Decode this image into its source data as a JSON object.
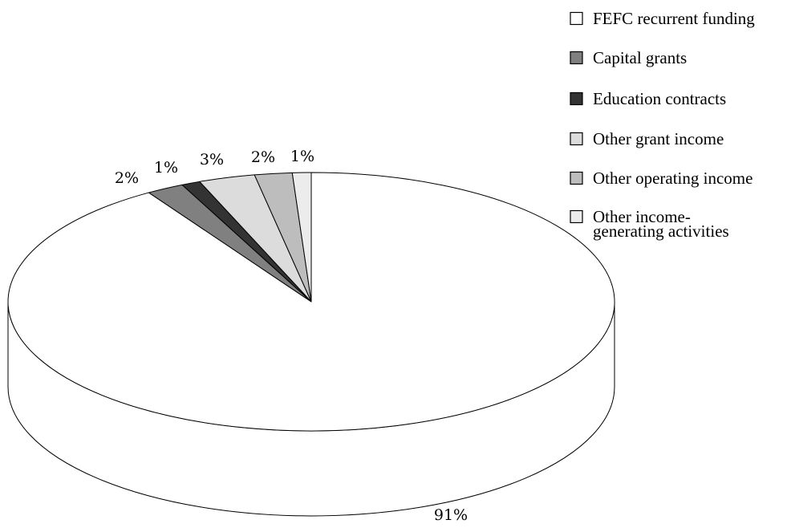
{
  "chart_data": {
    "type": "pie",
    "style": "3d",
    "title": "",
    "legend_position": "right",
    "slices": [
      {
        "label": "FEFC recurrent funding",
        "value": 91,
        "value_label": "91%",
        "color": "#ffffff"
      },
      {
        "label": "Capital grants",
        "value": 2,
        "value_label": "2%",
        "color": "#808080"
      },
      {
        "label": "Education contracts",
        "value": 1,
        "value_label": "1%",
        "color": "#333333"
      },
      {
        "label": "Other grant income",
        "value": 3,
        "value_label": "3%",
        "color": "#dcdcdc"
      },
      {
        "label": "Other operating income",
        "value": 2,
        "value_label": "2%",
        "color": "#bdbdbd"
      },
      {
        "label": "Other income-generating activities",
        "value": 1,
        "value_label": "1%",
        "color": "#ececec"
      }
    ]
  }
}
